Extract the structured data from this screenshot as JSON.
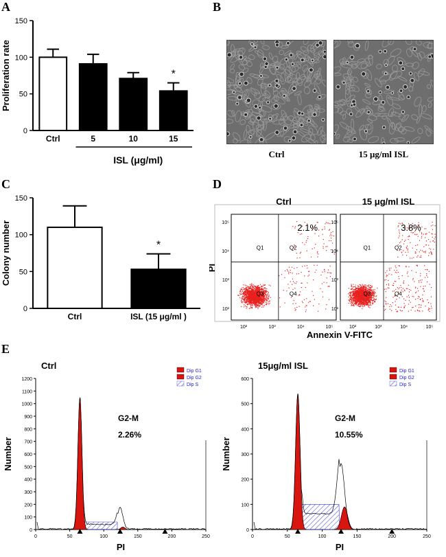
{
  "figure": {
    "panel_letters": {
      "A": "A",
      "B": "B",
      "C": "C",
      "D": "D",
      "E": "E"
    }
  },
  "panel_b": {
    "images": [
      {
        "caption": "Ctrl",
        "texture": "dense-cells"
      },
      {
        "caption": "15 μg/ml ISL",
        "texture": "sparse-cells"
      }
    ],
    "colors": {
      "background": "#6e6e6e",
      "cell": "#d8d8d8"
    }
  },
  "panel_d": {
    "x_label": "Annexin V-FITC",
    "y_label": "PI",
    "quadrant_labels": [
      "Q1",
      "Q2",
      "Q3",
      "Q4"
    ],
    "tick_labels": [
      "10²",
      "10³",
      "10⁴",
      "10⁵"
    ],
    "plots": [
      {
        "title": "Ctrl",
        "percent": "2.1%"
      },
      {
        "title": "15 μg/ml ISL",
        "percent": "3.8%"
      }
    ],
    "dot_color": "#e8211f"
  },
  "panel_e": {
    "legend": [
      "Dip G1",
      "Dip G2",
      "Dip S"
    ],
    "x_label": "PI",
    "y_label": "Number",
    "plots": [
      {
        "title": "Ctrl",
        "phase": "G2-M",
        "percent": "2.26%",
        "y_ticks": [
          0,
          100,
          200,
          300,
          400,
          500,
          600,
          700,
          800,
          900,
          1000,
          1100,
          1200
        ],
        "x_ticks": [
          0,
          50,
          100,
          150,
          200,
          250
        ]
      },
      {
        "title": "15μg/ml ISL",
        "phase": "G2-M",
        "percent": "10.55%",
        "y_ticks": [
          0,
          100,
          200,
          300,
          400,
          500,
          600
        ],
        "x_ticks": [
          0,
          50,
          100,
          150,
          200,
          250
        ]
      }
    ],
    "colors": {
      "g1": "#d9150f",
      "g2": "#d9150f",
      "s": "#3a3ad8"
    }
  },
  "chart_data": [
    {
      "id": "A",
      "type": "bar",
      "categories": [
        "Ctrl",
        "5",
        "10",
        "15"
      ],
      "values": [
        100,
        91,
        71,
        54
      ],
      "errors": [
        11,
        13,
        8,
        11
      ],
      "fills": [
        "#ffffff",
        "#000000",
        "#000000",
        "#000000"
      ],
      "significance": [
        "",
        "",
        "",
        "*"
      ],
      "ylabel": "Proliferation rate",
      "xlabel": "ISL (μg/ml)",
      "ylim": [
        0,
        150
      ],
      "yticks": [
        0,
        50,
        100,
        150
      ]
    },
    {
      "id": "C",
      "type": "bar",
      "categories": [
        "Ctrl",
        "ISL (15 μg/ml )"
      ],
      "values": [
        110,
        53
      ],
      "errors": [
        29,
        21
      ],
      "fills": [
        "#ffffff",
        "#000000"
      ],
      "significance": [
        "",
        "*"
      ],
      "ylabel": "Colony number",
      "xlabel": "",
      "ylim": [
        0,
        150
      ],
      "yticks": [
        0,
        50,
        100,
        150
      ]
    }
  ]
}
